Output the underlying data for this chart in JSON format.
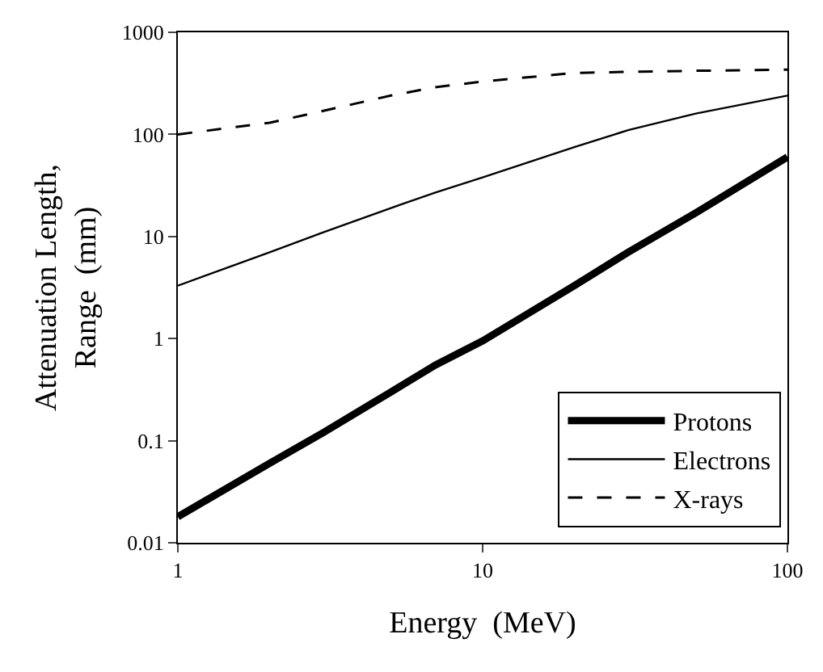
{
  "chart_data": {
    "type": "line",
    "xlabel": "Energy  (MeV)",
    "ylabel": "Attenuation Length,\nRange  (mm)",
    "x": [
      1,
      2,
      3,
      5,
      7,
      10,
      20,
      30,
      50,
      100
    ],
    "series": [
      {
        "name": "Protons",
        "color": "#000000",
        "line_style": "solid",
        "values": [
          0.018,
          0.06,
          0.12,
          0.3,
          0.55,
          0.95,
          3.3,
          7,
          17,
          60
        ]
      },
      {
        "name": "Electrons",
        "color": "#000000",
        "line_style": "solid",
        "values": [
          3.3,
          7,
          11,
          19,
          27,
          38,
          75,
          110,
          160,
          240
        ]
      },
      {
        "name": "X-rays",
        "color": "#000000",
        "line_style": "dashed",
        "values": [
          100,
          130,
          170,
          240,
          290,
          330,
          400,
          410,
          420,
          430
        ]
      }
    ],
    "log": "xy",
    "xlim": [
      1,
      100
    ],
    "ylim": [
      0.01,
      1000
    ],
    "xticks": [
      1,
      10,
      100
    ],
    "yticks": [
      0.01,
      0.1,
      1,
      10,
      100,
      1000
    ],
    "grid": false,
    "legend": "bottom right",
    "marker": "none"
  }
}
